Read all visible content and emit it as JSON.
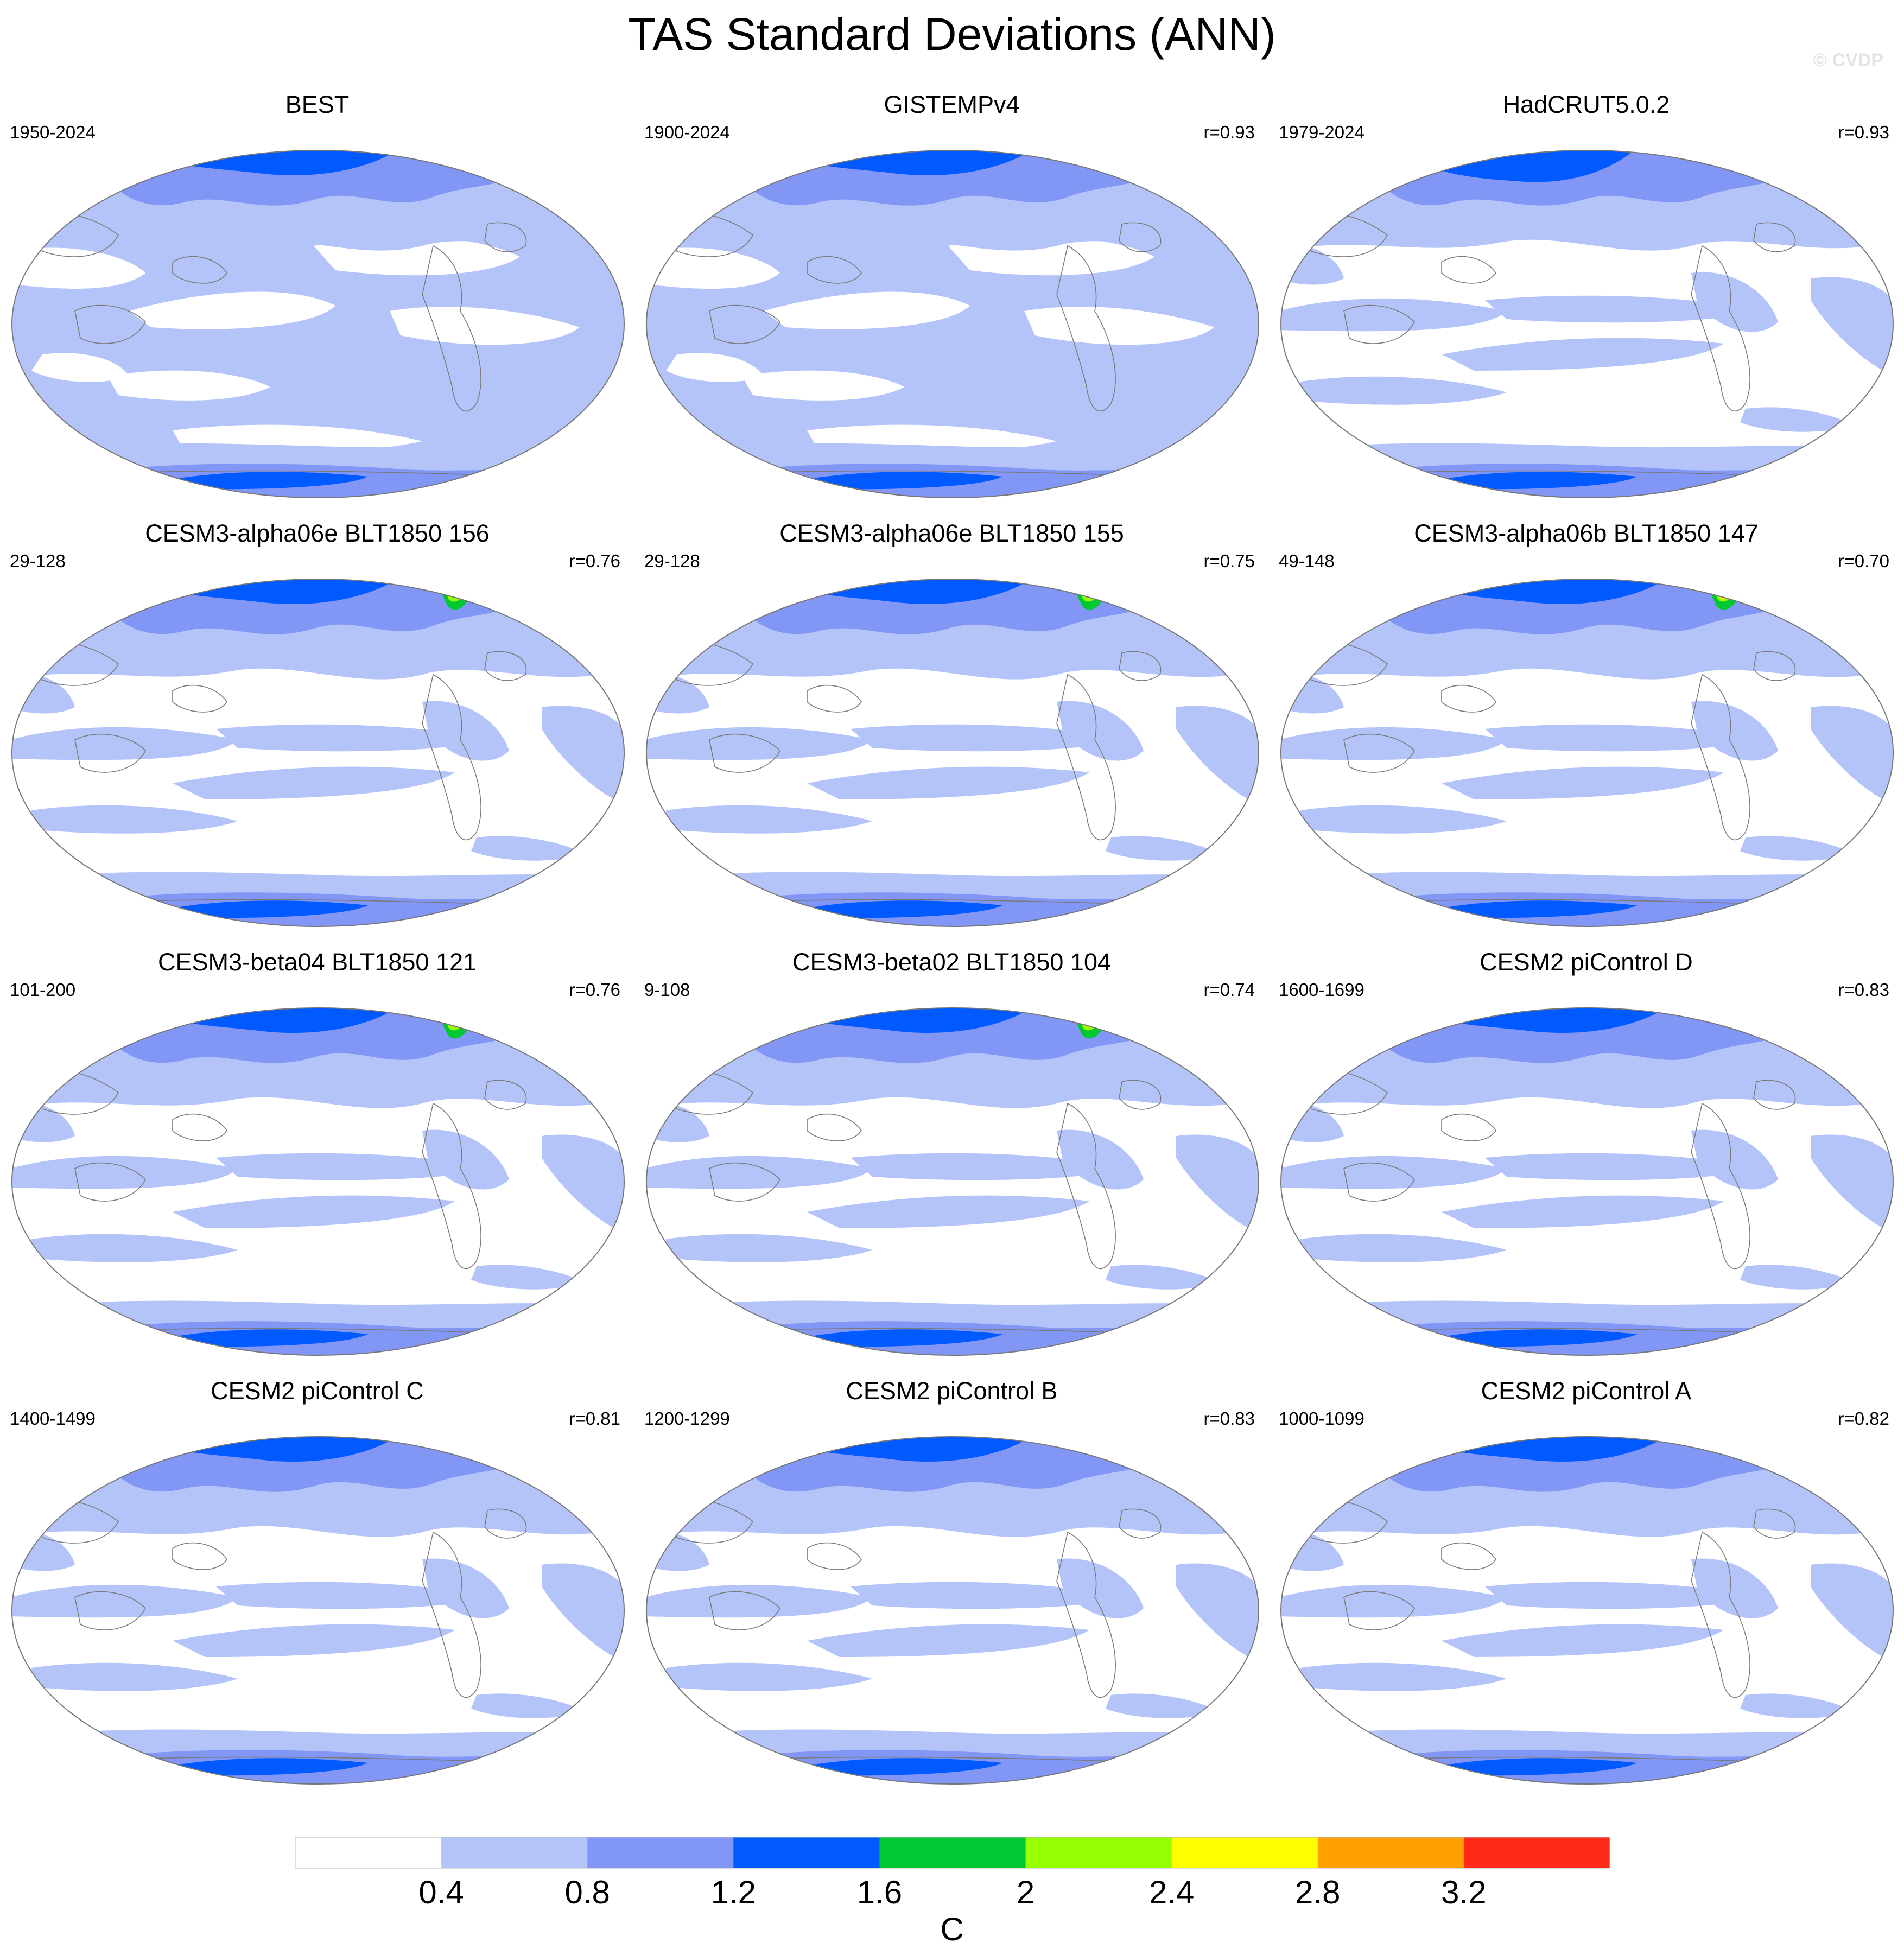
{
  "title": "TAS Standard Deviations (ANN)",
  "watermark": "© CVDP",
  "panels": [
    {
      "title": "BEST",
      "period": "1950-2024",
      "corr": "",
      "style": "obs1"
    },
    {
      "title": "GISTEMPv4",
      "period": "1900-2024",
      "corr": "r=0.93",
      "style": "obs2"
    },
    {
      "title": "HadCRUT5.0.2",
      "period": "1979-2024",
      "corr": "r=0.93",
      "style": "obs3"
    },
    {
      "title": "CESM3-alpha06e BLT1850 156",
      "period": "29-128",
      "corr": "r=0.76",
      "style": "model"
    },
    {
      "title": "CESM3-alpha06e BLT1850 155",
      "period": "29-128",
      "corr": "r=0.75",
      "style": "model"
    },
    {
      "title": "CESM3-alpha06b BLT1850 147",
      "period": "49-148",
      "corr": "r=0.70",
      "style": "modelHot"
    },
    {
      "title": "CESM3-beta04 BLT1850 121",
      "period": "101-200",
      "corr": "r=0.76",
      "style": "model"
    },
    {
      "title": "CESM3-beta02 BLT1850 104",
      "period": "9-108",
      "corr": "r=0.74",
      "style": "model"
    },
    {
      "title": "CESM2 piControl D",
      "period": "1600-1699",
      "corr": "r=0.83",
      "style": "cesm2"
    },
    {
      "title": "CESM2 piControl C",
      "period": "1400-1499",
      "corr": "r=0.81",
      "style": "cesm2"
    },
    {
      "title": "CESM2 piControl B",
      "period": "1200-1299",
      "corr": "r=0.83",
      "style": "cesm2"
    },
    {
      "title": "CESM2 piControl A",
      "period": "1000-1099",
      "corr": "r=0.82",
      "style": "cesm2"
    }
  ],
  "chart_data": {
    "type": "map",
    "variable": "TAS",
    "statistic": "Standard Deviations",
    "season": "ANN",
    "projection": "Robinson (Pacific-centered)",
    "colorbar": {
      "units": "C",
      "levels": [
        0.4,
        0.8,
        1.2,
        1.6,
        2,
        2.4,
        2.8,
        3.2
      ],
      "tick_labels": [
        "0.4",
        "0.8",
        "1.2",
        "1.6",
        "2",
        "2.4",
        "2.8",
        "3.2"
      ],
      "colors": [
        "#ffffff",
        "#b4c4f8",
        "#8296f5",
        "#005aff",
        "#00c832",
        "#96ff00",
        "#ffff00",
        "#ffa000",
        "#ff2a1a"
      ]
    }
  }
}
